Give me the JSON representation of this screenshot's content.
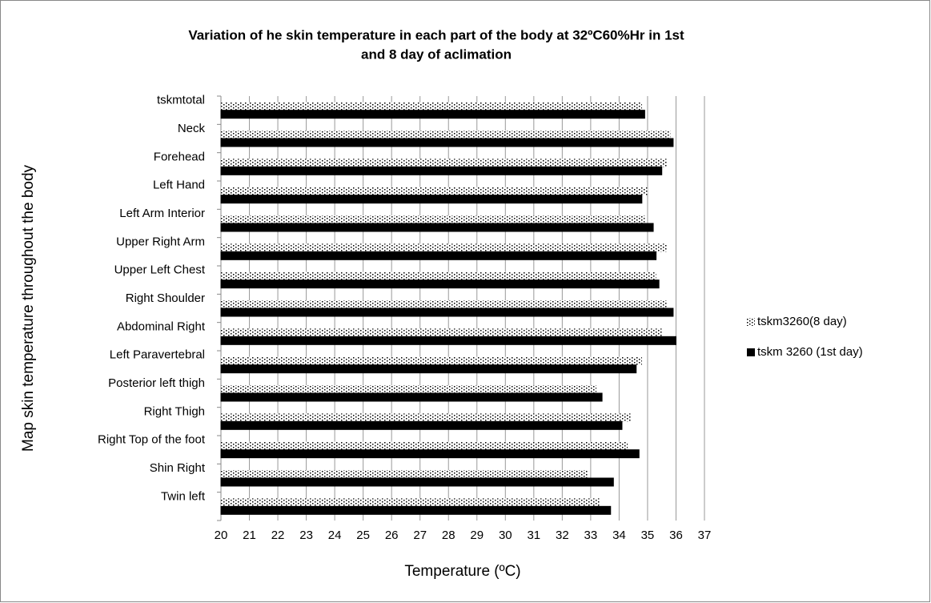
{
  "chart_data": {
    "type": "hbar",
    "title": [
      "Variation of he skin temperature in each part of the body at 32ºC60%Hr in 1st",
      "and 8 day of aclimation"
    ],
    "xlabel": "Temperature (ºC)",
    "ylabel": "Map skin temperature throughout the body",
    "categories": [
      "tskmtotal",
      "Neck",
      "Forehead",
      "Left Hand",
      "Left Arm Interior",
      "Upper Right Arm",
      "Upper Left Chest",
      "Right Shoulder",
      "Abdominal Right",
      "Left  Paravertebral",
      "Posterior left thigh",
      "Right Thigh",
      "Right Top of the foot",
      "Shin Right",
      "Twin left"
    ],
    "series": [
      {
        "name": "tskm3260(8 day)",
        "color": "#000000",
        "fill": "dotted",
        "values": [
          34.8,
          35.8,
          35.7,
          35.0,
          34.9,
          35.7,
          35.3,
          35.7,
          35.5,
          34.8,
          33.2,
          34.4,
          34.3,
          32.9,
          33.3
        ]
      },
      {
        "name": "tskm 3260 (1st day)",
        "color": "#000000",
        "fill": "solid",
        "values": [
          34.9,
          35.9,
          35.5,
          34.8,
          35.2,
          35.3,
          35.4,
          35.9,
          36.0,
          34.6,
          33.4,
          34.1,
          34.7,
          33.8,
          33.7
        ]
      }
    ],
    "xlim": [
      20,
      37
    ],
    "xticks": [
      20,
      21,
      22,
      23,
      24,
      25,
      26,
      27,
      28,
      29,
      30,
      31,
      32,
      33,
      34,
      35,
      36,
      37
    ],
    "grid": true,
    "legend": "right"
  }
}
